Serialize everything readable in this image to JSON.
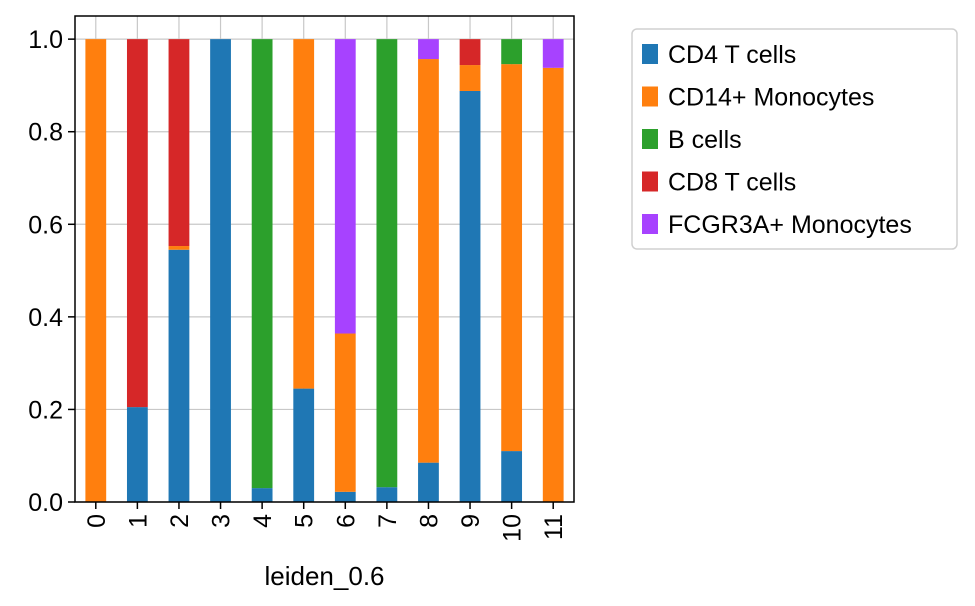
{
  "chart_data": {
    "type": "bar",
    "stacked": true,
    "xlabel": "leiden_0.6",
    "ylabel": "",
    "title": "",
    "ylim": [
      0,
      1.05
    ],
    "yticks": [
      "0.0",
      "0.2",
      "0.4",
      "0.6",
      "0.8",
      "1.0"
    ],
    "grid": true,
    "legend_position": "outside-top-right",
    "categories": [
      "0",
      "1",
      "2",
      "3",
      "4",
      "5",
      "6",
      "7",
      "8",
      "9",
      "10",
      "11"
    ],
    "series": [
      {
        "name": "CD4 T cells",
        "color": "#1f77b4",
        "values": [
          0,
          0.205,
          0.545,
          1.0,
          0.03,
          0.245,
          0.022,
          0.032,
          0.085,
          0.888,
          0.11,
          0
        ]
      },
      {
        "name": "CD14+ Monocytes",
        "color": "#ff7f0e",
        "values": [
          1.0,
          0,
          0.008,
          0,
          0,
          0.755,
          0.342,
          0,
          0.872,
          0.056,
          0.836,
          0.938
        ]
      },
      {
        "name": "B cells",
        "color": "#2ca02c",
        "values": [
          0,
          0,
          0,
          0,
          0.97,
          0,
          0,
          0.968,
          0,
          0,
          0.054,
          0
        ]
      },
      {
        "name": "CD8 T cells",
        "color": "#d62728",
        "values": [
          0,
          0.795,
          0.447,
          0,
          0,
          0,
          0,
          0,
          0,
          0.056,
          0,
          0
        ]
      },
      {
        "name": "FCGR3A+ Monocytes",
        "color": "#a742ff",
        "values": [
          0,
          0,
          0,
          0,
          0,
          0,
          0.636,
          0,
          0.043,
          0,
          0,
          0.062
        ]
      }
    ]
  }
}
